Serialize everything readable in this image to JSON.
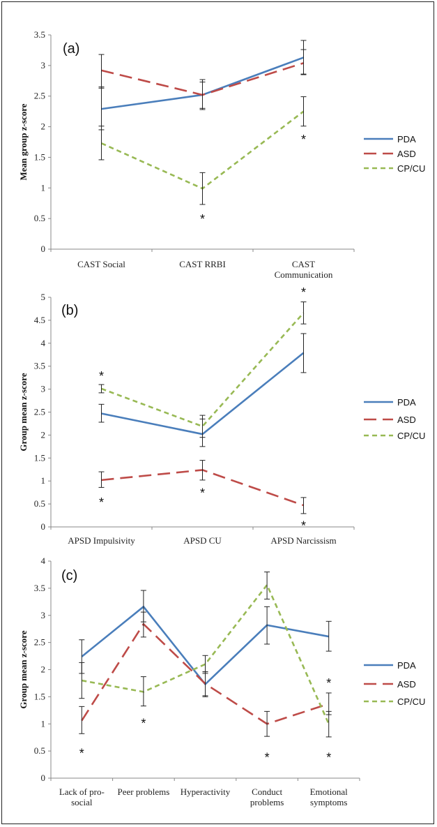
{
  "chart_data": [
    {
      "type": "line",
      "panel_label": "(a)",
      "ylabel": "Mean group z-score",
      "ylim": [
        0,
        3.5
      ],
      "yticks": [
        "0",
        "0.5",
        "1",
        "1.5",
        "2",
        "2.5",
        "3",
        "3.5"
      ],
      "categories": [
        [
          "CAST Social"
        ],
        [
          "CAST RRBI"
        ],
        [
          "CAST",
          "Communication"
        ]
      ],
      "legend_position": "right",
      "series": [
        {
          "name": "PDA",
          "color": "#4a7ebb",
          "dash": "solid",
          "values": [
            2.29,
            2.52,
            3.13
          ],
          "err_low": [
            1.95,
            2.28,
            2.86
          ],
          "err_high": [
            2.65,
            2.77,
            3.41
          ]
        },
        {
          "name": "ASD",
          "color": "#be4b48",
          "dash": "long",
          "values": [
            2.92,
            2.52,
            3.04
          ],
          "err_low": [
            2.63,
            2.3,
            2.85
          ],
          "err_high": [
            3.18,
            2.73,
            3.26
          ]
        },
        {
          "name": "CP/CU",
          "color": "#98b954",
          "dash": "short",
          "values": [
            1.73,
            0.99,
            2.25
          ],
          "err_low": [
            1.46,
            0.73,
            2.01
          ],
          "err_high": [
            2.01,
            1.25,
            2.49
          ]
        }
      ],
      "annotations": [
        {
          "text": "*",
          "cat": 1,
          "y": 0.5
        },
        {
          "text": "*",
          "cat": 2,
          "y": 1.8
        }
      ]
    },
    {
      "type": "line",
      "panel_label": "(b)",
      "ylabel": "Group mean z-score",
      "ylim": [
        0,
        5
      ],
      "yticks": [
        "0",
        "0.5",
        "1",
        "1.5",
        "2",
        "2.5",
        "3",
        "3.5",
        "4",
        "4.5",
        "5"
      ],
      "categories": [
        [
          "APSD Impulsivity"
        ],
        [
          "APSD CU"
        ],
        [
          "APSD Narcissism"
        ]
      ],
      "legend_position": "right",
      "series": [
        {
          "name": "PDA",
          "color": "#4a7ebb",
          "dash": "solid",
          "values": [
            2.47,
            2.02,
            3.79
          ],
          "err_low": [
            2.28,
            1.75,
            3.36
          ],
          "err_high": [
            2.67,
            2.35,
            4.21
          ]
        },
        {
          "name": "ASD",
          "color": "#be4b48",
          "dash": "long",
          "values": [
            1.02,
            1.24,
            0.47
          ],
          "err_low": [
            0.86,
            1.02,
            0.29
          ],
          "err_high": [
            1.2,
            1.45,
            0.64
          ]
        },
        {
          "name": "CP/CU",
          "color": "#98b954",
          "dash": "short",
          "values": [
            3.01,
            2.19,
            4.66
          ],
          "err_low": [
            2.92,
            1.95,
            4.42
          ],
          "err_high": [
            3.1,
            2.43,
            4.9
          ]
        }
      ],
      "annotations": [
        {
          "text": "*",
          "cat": 0,
          "y": 3.3
        },
        {
          "text": "*",
          "cat": 0,
          "y": 0.55
        },
        {
          "text": "*",
          "cat": 1,
          "y": 0.75
        },
        {
          "text": "*",
          "cat": 2,
          "y": 5.12
        },
        {
          "text": "*",
          "cat": 2,
          "y": 0.04
        }
      ]
    },
    {
      "type": "line",
      "panel_label": "(c)",
      "ylabel": "Group mean z-score",
      "ylim": [
        0,
        4
      ],
      "yticks": [
        "0",
        "0.5",
        "1",
        "1.5",
        "2",
        "2.5",
        "3",
        "3.5",
        "4"
      ],
      "categories": [
        [
          "Lack of pro-",
          "social"
        ],
        [
          "Peer problems"
        ],
        [
          "Hyperactivity"
        ],
        [
          "Conduct",
          "problems"
        ],
        [
          "Emotional",
          "symptoms"
        ]
      ],
      "legend_position": "right",
      "series": [
        {
          "name": "PDA",
          "color": "#4a7ebb",
          "dash": "solid",
          "values": [
            2.24,
            3.16,
            1.73,
            2.82,
            2.61
          ],
          "err_low": [
            1.93,
            2.88,
            1.5,
            2.47,
            2.34
          ],
          "err_high": [
            2.55,
            3.46,
            1.96,
            3.16,
            2.89
          ]
        },
        {
          "name": "ASD",
          "color": "#be4b48",
          "dash": "long",
          "values": [
            1.06,
            2.84,
            1.74,
            1.0,
            1.37
          ],
          "err_low": [
            0.82,
            2.6,
            1.52,
            0.77,
            1.17
          ],
          "err_high": [
            1.32,
            3.06,
            1.96,
            1.23,
            1.57
          ]
        },
        {
          "name": "CP/CU",
          "color": "#98b954",
          "dash": "short",
          "values": [
            1.8,
            1.59,
            2.1,
            3.56,
            1.0
          ],
          "err_low": [
            1.47,
            1.33,
            1.93,
            3.3,
            0.76
          ],
          "err_high": [
            2.13,
            1.87,
            2.26,
            3.8,
            1.23
          ]
        }
      ],
      "annotations": [
        {
          "text": "*",
          "cat": 0,
          "y": 0.47
        },
        {
          "text": "*",
          "cat": 1,
          "y": 1.02
        },
        {
          "text": "*",
          "cat": 3,
          "y": 0.39
        },
        {
          "text": "*",
          "cat": 4,
          "y": 1.76
        },
        {
          "text": "*",
          "cat": 4,
          "y": 0.39
        }
      ]
    }
  ]
}
